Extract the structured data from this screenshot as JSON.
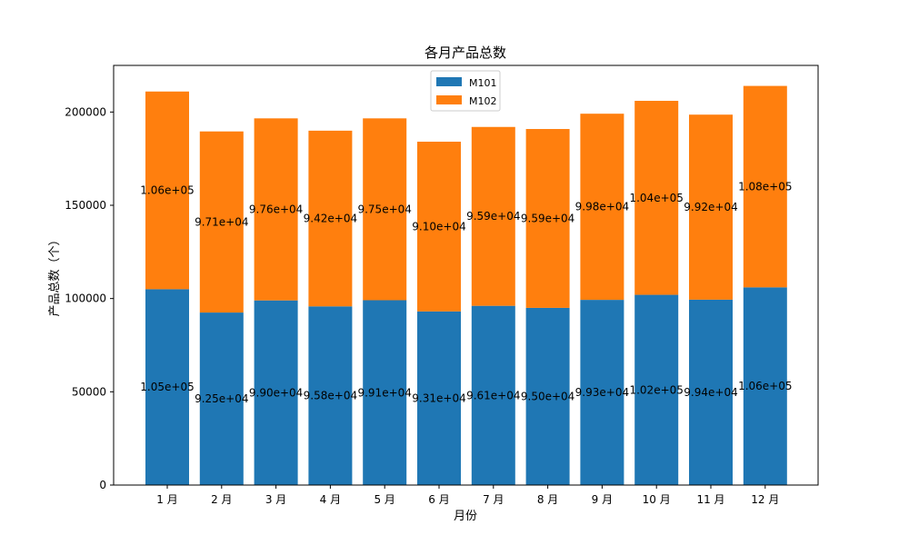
{
  "chart_data": {
    "type": "bar",
    "stacked": true,
    "title": "各月产品总数",
    "xlabel": "月份",
    "ylabel": "产品总数（个）",
    "categories": [
      "1 月",
      "2 月",
      "3 月",
      "4 月",
      "5 月",
      "6 月",
      "7 月",
      "8 月",
      "9 月",
      "10 月",
      "11 月",
      "12 月"
    ],
    "ylim": [
      0,
      225000
    ],
    "yticks": [
      0,
      50000,
      100000,
      150000,
      200000
    ],
    "ytick_labels": [
      "0",
      "50000",
      "100000",
      "150000",
      "200000"
    ],
    "legend_position": "top-center",
    "grid": false,
    "series": [
      {
        "name": "M101",
        "color": "#1f77b4",
        "values": [
          105000,
          92500,
          99000,
          95800,
          99100,
          93100,
          96100,
          95000,
          99300,
          102000,
          99400,
          106000
        ],
        "labels": [
          "1.05e+05",
          "9.25e+04",
          "9.90e+04",
          "9.58e+04",
          "9.91e+04",
          "9.31e+04",
          "9.61e+04",
          "9.50e+04",
          "9.93e+04",
          "1.02e+05",
          "9.94e+04",
          "1.06e+05"
        ]
      },
      {
        "name": "M102",
        "color": "#ff7f0e",
        "values": [
          106000,
          97100,
          97600,
          94200,
          97500,
          91000,
          95900,
          95900,
          99800,
          104000,
          99200,
          108000
        ],
        "labels": [
          "1.06e+05",
          "9.71e+04",
          "9.76e+04",
          "9.42e+04",
          "9.75e+04",
          "9.10e+04",
          "9.59e+04",
          "9.59e+04",
          "9.98e+04",
          "1.04e+05",
          "9.92e+04",
          "1.08e+05"
        ]
      }
    ]
  }
}
